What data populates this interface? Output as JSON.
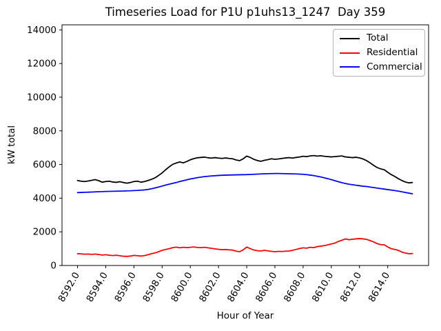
{
  "chart_data": {
    "type": "line",
    "title": "Timeseries Load for P1U p1uhs13_1247  Day 359",
    "xlabel": "Hour of Year",
    "ylabel": "kW total",
    "ylim": [
      0,
      14300
    ],
    "xlim": [
      8590.9,
      8616.9
    ],
    "grid": false,
    "yticks": {
      "values": [
        0,
        2000,
        4000,
        6000,
        8000,
        10000,
        12000,
        14000
      ],
      "labels": [
        "0",
        "2000",
        "4000",
        "6000",
        "8000",
        "10000",
        "12000",
        "14000"
      ]
    },
    "xticks": {
      "values": [
        8592,
        8594,
        8596,
        8598,
        8600,
        8602,
        8604,
        8606,
        8608,
        8610,
        8612,
        8614
      ],
      "labels": [
        "8592.0",
        "8594.0",
        "8596.0",
        "8598.0",
        "8600.0",
        "8602.0",
        "8604.0",
        "8606.0",
        "8608.0",
        "8610.0",
        "8612.0",
        "8614.0"
      ],
      "rotation_deg": 60
    },
    "legend": {
      "position": "upper right",
      "entries": [
        "Total",
        "Residential",
        "Commercial"
      ]
    },
    "x_start": 8592.0,
    "x_step": 0.25,
    "x": [
      8592.0,
      8592.25,
      8592.5,
      8592.75,
      8593.0,
      8593.25,
      8593.5,
      8593.75,
      8594.0,
      8594.25,
      8594.5,
      8594.75,
      8595.0,
      8595.25,
      8595.5,
      8595.75,
      8596.0,
      8596.25,
      8596.5,
      8596.75,
      8597.0,
      8597.25,
      8597.5,
      8597.75,
      8598.0,
      8598.25,
      8598.5,
      8598.75,
      8599.0,
      8599.25,
      8599.5,
      8599.75,
      8600.0,
      8600.25,
      8600.5,
      8600.75,
      8601.0,
      8601.25,
      8601.5,
      8601.75,
      8602.0,
      8602.25,
      8602.5,
      8602.75,
      8603.0,
      8603.25,
      8603.5,
      8603.75,
      8604.0,
      8604.25,
      8604.5,
      8604.75,
      8605.0,
      8605.25,
      8605.5,
      8605.75,
      8606.0,
      8606.25,
      8606.5,
      8606.75,
      8607.0,
      8607.25,
      8607.5,
      8607.75,
      8608.0,
      8608.25,
      8608.5,
      8608.75,
      8609.0,
      8609.25,
      8609.5,
      8609.75,
      8610.0,
      8610.25,
      8610.5,
      8610.75,
      8611.0,
      8611.25,
      8611.5,
      8611.75,
      8612.0,
      8612.25,
      8612.5,
      8612.75,
      8613.0,
      8613.25,
      8613.5,
      8613.75,
      8614.0,
      8614.25,
      8614.5,
      8614.75,
      8615.0,
      8615.25,
      8615.5,
      8615.75
    ],
    "series": [
      {
        "name": "Total",
        "color": "#000000",
        "values": [
          5050,
          5010,
          4990,
          5020,
          5060,
          5100,
          5040,
          4950,
          4990,
          5010,
          4960,
          4940,
          4980,
          4930,
          4890,
          4930,
          4990,
          5010,
          4950,
          4990,
          5050,
          5120,
          5210,
          5350,
          5500,
          5690,
          5860,
          6010,
          6090,
          6150,
          6100,
          6180,
          6280,
          6350,
          6400,
          6420,
          6440,
          6400,
          6380,
          6410,
          6380,
          6360,
          6390,
          6360,
          6340,
          6270,
          6230,
          6340,
          6500,
          6420,
          6310,
          6240,
          6190,
          6250,
          6290,
          6340,
          6310,
          6330,
          6360,
          6390,
          6410,
          6380,
          6420,
          6450,
          6490,
          6470,
          6510,
          6530,
          6500,
          6520,
          6490,
          6470,
          6450,
          6470,
          6490,
          6510,
          6450,
          6430,
          6410,
          6430,
          6390,
          6330,
          6230,
          6100,
          5950,
          5820,
          5740,
          5690,
          5540,
          5400,
          5290,
          5160,
          5050,
          4960,
          4910,
          4930
        ]
      },
      {
        "name": "Residential",
        "color": "#ff0000",
        "values": [
          700,
          690,
          670,
          680,
          660,
          680,
          650,
          620,
          640,
          610,
          590,
          610,
          580,
          550,
          540,
          560,
          600,
          580,
          560,
          590,
          640,
          700,
          750,
          820,
          900,
          950,
          1000,
          1060,
          1090,
          1050,
          1080,
          1060,
          1080,
          1100,
          1070,
          1060,
          1080,
          1050,
          1020,
          990,
          960,
          940,
          950,
          930,
          915,
          850,
          820,
          930,
          1095,
          1000,
          920,
          880,
          860,
          900,
          870,
          840,
          820,
          840,
          830,
          850,
          860,
          900,
          955,
          1010,
          1050,
          1030,
          1080,
          1060,
          1120,
          1150,
          1180,
          1230,
          1280,
          1330,
          1430,
          1500,
          1580,
          1530,
          1560,
          1580,
          1600,
          1580,
          1550,
          1480,
          1400,
          1300,
          1240,
          1230,
          1100,
          1000,
          950,
          900,
          800,
          740,
          700,
          710
        ]
      },
      {
        "name": "Commercial",
        "color": "#0000ff",
        "values": [
          4330,
          4340,
          4350,
          4355,
          4365,
          4375,
          4385,
          4390,
          4400,
          4405,
          4410,
          4415,
          4420,
          4425,
          4435,
          4440,
          4450,
          4460,
          4475,
          4490,
          4520,
          4560,
          4610,
          4660,
          4720,
          4780,
          4830,
          4880,
          4930,
          4990,
          5040,
          5090,
          5140,
          5180,
          5220,
          5250,
          5280,
          5300,
          5320,
          5335,
          5350,
          5360,
          5370,
          5375,
          5380,
          5385,
          5390,
          5395,
          5400,
          5410,
          5420,
          5430,
          5440,
          5450,
          5455,
          5460,
          5465,
          5465,
          5460,
          5455,
          5450,
          5445,
          5440,
          5430,
          5420,
          5400,
          5370,
          5340,
          5300,
          5260,
          5210,
          5160,
          5100,
          5040,
          4980,
          4920,
          4870,
          4830,
          4800,
          4770,
          4740,
          4710,
          4690,
          4660,
          4630,
          4600,
          4570,
          4540,
          4510,
          4480,
          4450,
          4420,
          4380,
          4340,
          4300,
          4260
        ]
      }
    ]
  }
}
